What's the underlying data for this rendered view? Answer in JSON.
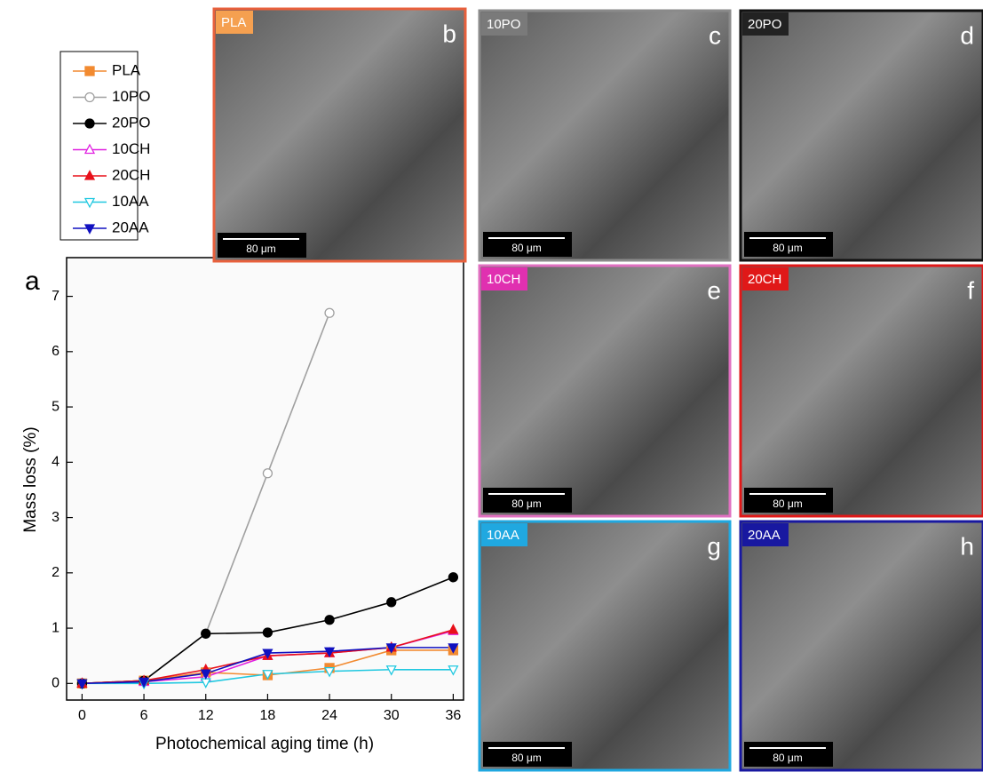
{
  "chart_data": {
    "type": "line",
    "panel_letter": "a",
    "x_label": "Photochemical aging time (h)",
    "y_label": "Mass loss (%)",
    "x": [
      0,
      6,
      12,
      18,
      24,
      30,
      36
    ],
    "xlim": [
      -1.5,
      37
    ],
    "ylim": [
      -0.3,
      7.7
    ],
    "xticks": [
      0,
      6,
      12,
      18,
      24,
      30,
      36
    ],
    "yticks": [
      0,
      1,
      2,
      3,
      4,
      5,
      6,
      7
    ],
    "series": [
      {
        "name": "PLA",
        "color": "#f28a30",
        "marker": "square",
        "filled": true,
        "values": [
          0,
          0.05,
          0.2,
          0.15,
          0.28,
          0.6,
          0.6
        ]
      },
      {
        "name": "10PO",
        "color": "#a0a0a0",
        "marker": "circle",
        "filled": false,
        "values": [
          0,
          0.05,
          0.9,
          3.8,
          6.7,
          null,
          null
        ]
      },
      {
        "name": "20PO",
        "color": "#000000",
        "marker": "circle",
        "filled": true,
        "values": [
          0,
          0.05,
          0.9,
          0.92,
          1.15,
          1.47,
          1.92
        ]
      },
      {
        "name": "10CH",
        "color": "#e020e0",
        "marker": "triangle",
        "filled": false,
        "values": [
          0,
          0.03,
          0.12,
          0.5,
          0.55,
          0.65,
          0.95
        ]
      },
      {
        "name": "20CH",
        "color": "#e8101a",
        "marker": "triangle",
        "filled": true,
        "values": [
          0,
          0.05,
          0.25,
          0.5,
          0.55,
          0.65,
          0.97
        ]
      },
      {
        "name": "10AA",
        "color": "#20c8e0",
        "marker": "down",
        "filled": false,
        "values": [
          0,
          0,
          0.02,
          0.17,
          0.22,
          0.25,
          0.25
        ]
      },
      {
        "name": "20AA",
        "color": "#1010c0",
        "marker": "down",
        "filled": true,
        "values": [
          0,
          0.03,
          0.18,
          0.55,
          0.58,
          0.65,
          0.65
        ]
      }
    ]
  },
  "panels": [
    {
      "tag": "PLA",
      "letter": "b",
      "scale": "80 μm",
      "color": "#e8603c",
      "tag_color": "#f5a050"
    },
    {
      "tag": "10PO",
      "letter": "c",
      "scale": "80 μm",
      "color": "#8a8a8a",
      "tag_color": "#7a7a7a"
    },
    {
      "tag": "20PO",
      "letter": "d",
      "scale": "80 μm",
      "color": "#111111",
      "tag_color": "#222222"
    },
    {
      "tag": "10CH",
      "letter": "e",
      "scale": "80 μm",
      "color": "#e070c0",
      "tag_color": "#e030b0"
    },
    {
      "tag": "20CH",
      "letter": "f",
      "scale": "80 μm",
      "color": "#e01818",
      "tag_color": "#e01818"
    },
    {
      "tag": "10AA",
      "letter": "g",
      "scale": "80 μm",
      "color": "#20a8e0",
      "tag_color": "#20a8e0"
    },
    {
      "tag": "20AA",
      "letter": "h",
      "scale": "80 μm",
      "color": "#1818a0",
      "tag_color": "#1818a0"
    }
  ]
}
